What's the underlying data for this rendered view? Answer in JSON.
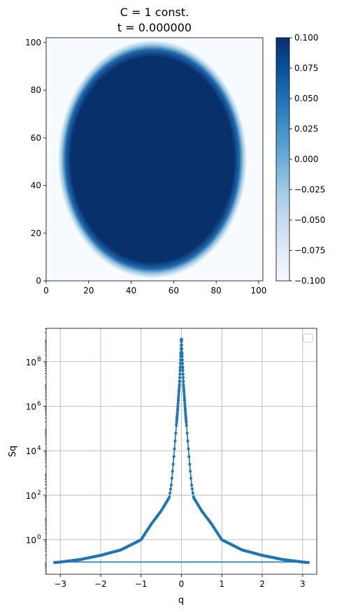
{
  "chart_data": [
    {
      "type": "heatmap",
      "title_line1": "C = 1 const.",
      "title_line2": "t = 0.000000",
      "xticks": [
        0,
        20,
        40,
        60,
        80,
        100
      ],
      "yticks": [
        0,
        20,
        40,
        60,
        80,
        100
      ],
      "xlim": [
        0,
        102
      ],
      "ylim": [
        0,
        102
      ],
      "circle": {
        "cx": 50,
        "cy": 51,
        "rx": 44.5,
        "ry": 50
      },
      "value_inside": 0.1,
      "value_outside": -0.1,
      "colormap": "Blues",
      "colorbar": {
        "vmin": -0.1,
        "vmax": 0.1,
        "ticks": [
          0.1,
          0.075,
          0.05,
          0.025,
          0.0,
          -0.025,
          -0.05,
          -0.075,
          -0.1
        ],
        "tick_labels": [
          "0.100",
          "0.075",
          "0.050",
          "0.025",
          "0.000",
          "−0.025",
          "−0.050",
          "−0.075",
          "−0.100"
        ],
        "colors": [
          "#f7fbff",
          "#deebf7",
          "#c6dbef",
          "#9ecae1",
          "#6baed6",
          "#4292c6",
          "#2171b5",
          "#08519c",
          "#08306b"
        ]
      }
    },
    {
      "type": "scatter",
      "xlabel": "q",
      "ylabel": "Sq",
      "yscale": "log",
      "xlim": [
        -3.35,
        3.35
      ],
      "ylim_log10": [
        -1.55,
        9.5
      ],
      "xticks": [
        -3,
        -2,
        -1,
        0,
        1,
        2,
        3
      ],
      "xtick_labels": [
        "−3",
        "−2",
        "−1",
        "0",
        "1",
        "2",
        "3"
      ],
      "yticks_log10": [
        0,
        2,
        4,
        6,
        8
      ],
      "ytick_bases": [
        "10",
        "10",
        "10",
        "10",
        "10"
      ],
      "ytick_exponents": [
        "0",
        "2",
        "4",
        "6",
        "8"
      ],
      "grid": true,
      "legend": "empty, upper right",
      "series_color": "#1f77b4",
      "baseline_y": 0.1,
      "q_range": [
        -3.14159,
        3.14159
      ],
      "curve_points": [
        [
          0.0,
          1000000000.0
        ],
        [
          0.02,
          150000000.0
        ],
        [
          0.05,
          10000000.0
        ],
        [
          0.1,
          500000.0
        ],
        [
          0.15,
          40000.0
        ],
        [
          0.2,
          3000.0
        ],
        [
          0.25,
          300.0
        ],
        [
          0.3,
          80
        ],
        [
          0.5,
          20
        ],
        [
          0.75,
          5
        ],
        [
          1.0,
          1.0
        ],
        [
          1.5,
          0.35
        ],
        [
          2.0,
          0.2
        ],
        [
          2.5,
          0.13
        ],
        [
          3.0,
          0.1
        ],
        [
          3.14,
          0.095
        ]
      ]
    }
  ]
}
